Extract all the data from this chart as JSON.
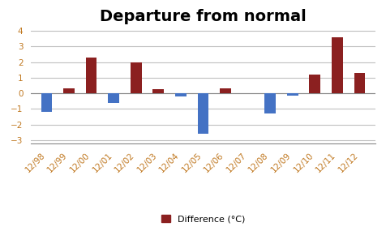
{
  "title": "Departure from normal",
  "categories": [
    "12/98",
    "12/99",
    "12/00",
    "12/01",
    "12/02",
    "12/03",
    "12/04",
    "12/05",
    "12/06",
    "12/07",
    "12/08",
    "12/09",
    "12/10",
    "12/11",
    "12/12"
  ],
  "values": [
    -1.2,
    0.3,
    2.3,
    -0.6,
    2.0,
    0.25,
    -0.2,
    -2.6,
    0.3,
    0.0,
    -1.3,
    -0.15,
    1.2,
    3.6,
    1.3
  ],
  "positive_color": "#8B2020",
  "negative_color": "#4472C4",
  "ylim": [
    -3.2,
    4.2
  ],
  "yticks": [
    -3,
    -2,
    -1,
    0,
    1,
    2,
    3,
    4
  ],
  "legend_label": "Difference (°C)",
  "legend_color": "#8B2020",
  "plot_bg_color": "#FFFFFF",
  "fig_bg_color": "#FFFFFF",
  "grid_color": "#C0C0C0",
  "title_fontsize": 14,
  "tick_fontsize": 7.5,
  "tick_color": "#C07820",
  "bar_width": 0.5
}
